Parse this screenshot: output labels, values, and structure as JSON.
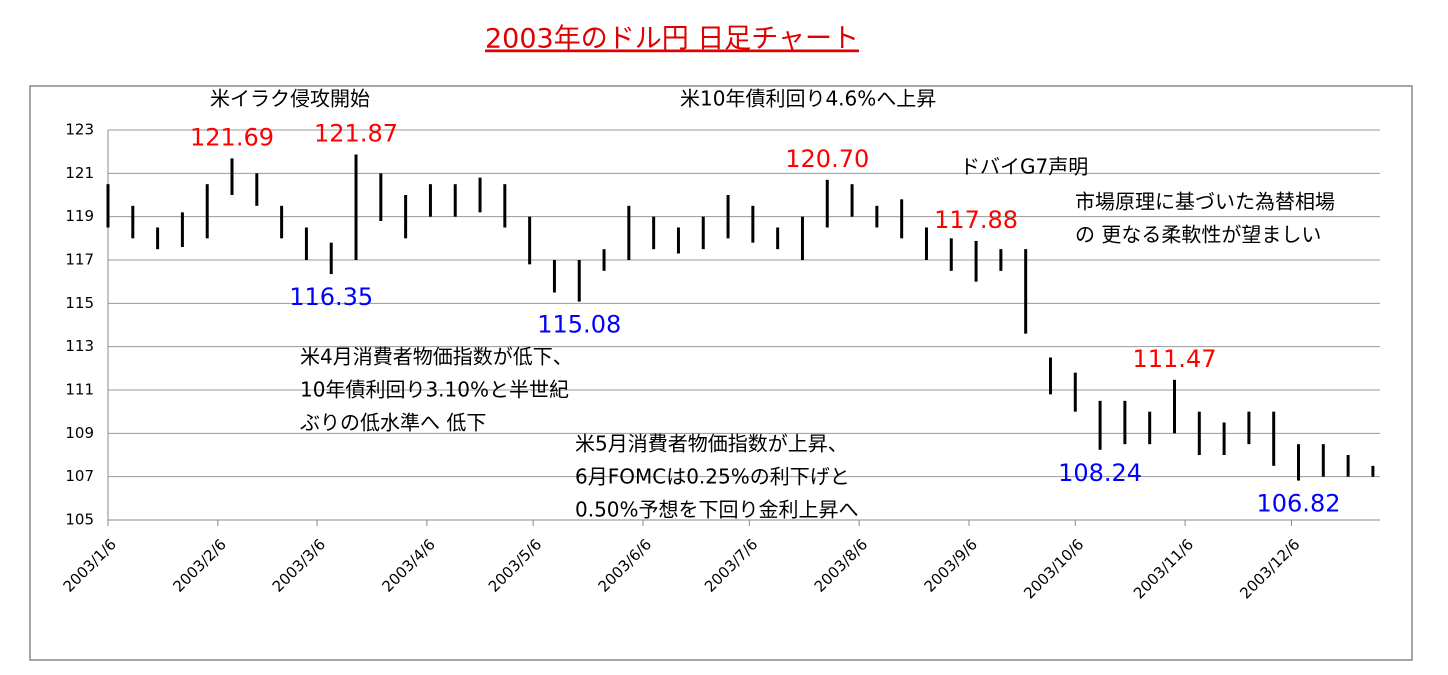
{
  "chart_data": {
    "type": "range-bar",
    "title": "2003年のドル円 日足チャート",
    "x": [
      "2003/1/6",
      "2003/1/13",
      "2003/1/20",
      "2003/1/27",
      "2003/2/3",
      "2003/2/10",
      "2003/2/17",
      "2003/2/24",
      "2003/3/3",
      "2003/3/10",
      "2003/3/17",
      "2003/3/24",
      "2003/3/31",
      "2003/4/7",
      "2003/4/14",
      "2003/4/21",
      "2003/4/28",
      "2003/5/5",
      "2003/5/12",
      "2003/5/19",
      "2003/5/26",
      "2003/6/2",
      "2003/6/9",
      "2003/6/16",
      "2003/6/23",
      "2003/6/30",
      "2003/7/7",
      "2003/7/14",
      "2003/7/21",
      "2003/7/28",
      "2003/8/4",
      "2003/8/11",
      "2003/8/18",
      "2003/8/25",
      "2003/9/1",
      "2003/9/8",
      "2003/9/15",
      "2003/9/22",
      "2003/9/29",
      "2003/10/6",
      "2003/10/13",
      "2003/10/20",
      "2003/10/27",
      "2003/11/3",
      "2003/11/10",
      "2003/11/17",
      "2003/11/24",
      "2003/12/1",
      "2003/12/8",
      "2003/12/15",
      "2003/12/22",
      "2003/12/29"
    ],
    "high": [
      120.5,
      119.5,
      118.5,
      119.2,
      120.5,
      121.69,
      121.0,
      119.5,
      118.5,
      117.8,
      121.87,
      121.0,
      120.0,
      120.5,
      120.5,
      120.8,
      120.5,
      119.0,
      117.0,
      117.0,
      117.5,
      119.5,
      119.0,
      118.5,
      119.0,
      120.0,
      119.5,
      118.5,
      119.0,
      120.7,
      120.5,
      119.5,
      119.8,
      118.5,
      118.0,
      117.88,
      117.5,
      117.5,
      112.5,
      111.8,
      110.5,
      110.5,
      110.0,
      111.47,
      110.0,
      109.5,
      110.0,
      110.0,
      108.5,
      108.5,
      108.0,
      107.5
    ],
    "low": [
      118.5,
      118.0,
      117.5,
      117.6,
      118.0,
      120.0,
      119.5,
      118.0,
      117.0,
      116.35,
      117.0,
      118.8,
      118.0,
      119.0,
      119.0,
      119.2,
      118.5,
      116.8,
      115.5,
      115.08,
      116.5,
      117.0,
      117.5,
      117.3,
      117.5,
      118.0,
      117.8,
      117.5,
      117.0,
      118.5,
      119.0,
      118.5,
      118.0,
      117.0,
      116.5,
      116.0,
      116.5,
      113.6,
      110.8,
      110.0,
      108.24,
      108.5,
      108.5,
      109.0,
      108.0,
      108.0,
      108.5,
      107.5,
      106.82,
      107.0,
      107.0,
      107.0
    ],
    "color": "#000000",
    "xlim": [
      "2003/1/6",
      "2003/12/31"
    ],
    "xticks": [
      "2003/1/6",
      "2003/2/6",
      "2003/3/6",
      "2003/4/6",
      "2003/5/6",
      "2003/6/6",
      "2003/7/6",
      "2003/8/6",
      "2003/9/6",
      "2003/10/6",
      "2003/11/6",
      "2003/12/6"
    ],
    "ylim": [
      105,
      123
    ],
    "yticks": [
      105,
      107,
      109,
      111,
      113,
      115,
      117,
      119,
      121,
      123
    ],
    "grid": true,
    "price_labels": [
      {
        "x": "2003/2/10",
        "value": 121.69,
        "label": "121.69",
        "color": "#ff0000"
      },
      {
        "x": "2003/3/10",
        "value": 116.35,
        "label": "116.35",
        "color": "#0000ff"
      },
      {
        "x": "2003/3/17",
        "value": 121.87,
        "label": "121.87",
        "color": "#ff0000"
      },
      {
        "x": "2003/5/19",
        "value": 115.08,
        "label": "115.08",
        "color": "#0000ff"
      },
      {
        "x": "2003/7/28",
        "value": 120.7,
        "label": "120.70",
        "color": "#ff0000"
      },
      {
        "x": "2003/9/8",
        "value": 117.88,
        "label": "117.88",
        "color": "#ff0000"
      },
      {
        "x": "2003/10/13",
        "value": 108.24,
        "label": "108.24",
        "color": "#0000ff"
      },
      {
        "x": "2003/11/3",
        "value": 111.47,
        "label": "111.47",
        "color": "#ff0000"
      },
      {
        "x": "2003/12/8",
        "value": 106.82,
        "label": "106.82",
        "color": "#0000ff"
      }
    ],
    "annotations": [
      [
        "米イラク侵攻開始"
      ],
      [
        "米10年債利回り4.6%へ上昇"
      ],
      [
        "ドバイG7声明"
      ],
      [
        "市場原理に基づいた為替相場",
        "の 更なる柔軟性が望ましい"
      ],
      [
        "米4月消費者物価指数が低下、",
        "10年債利回り3.10%と半世紀",
        "ぶりの低水準へ 低下"
      ],
      [
        "米5月消費者物価指数が上昇、",
        "6月FOMCは0.25%の利下げと",
        "0.50%予想を下回り金利上昇へ"
      ]
    ]
  }
}
